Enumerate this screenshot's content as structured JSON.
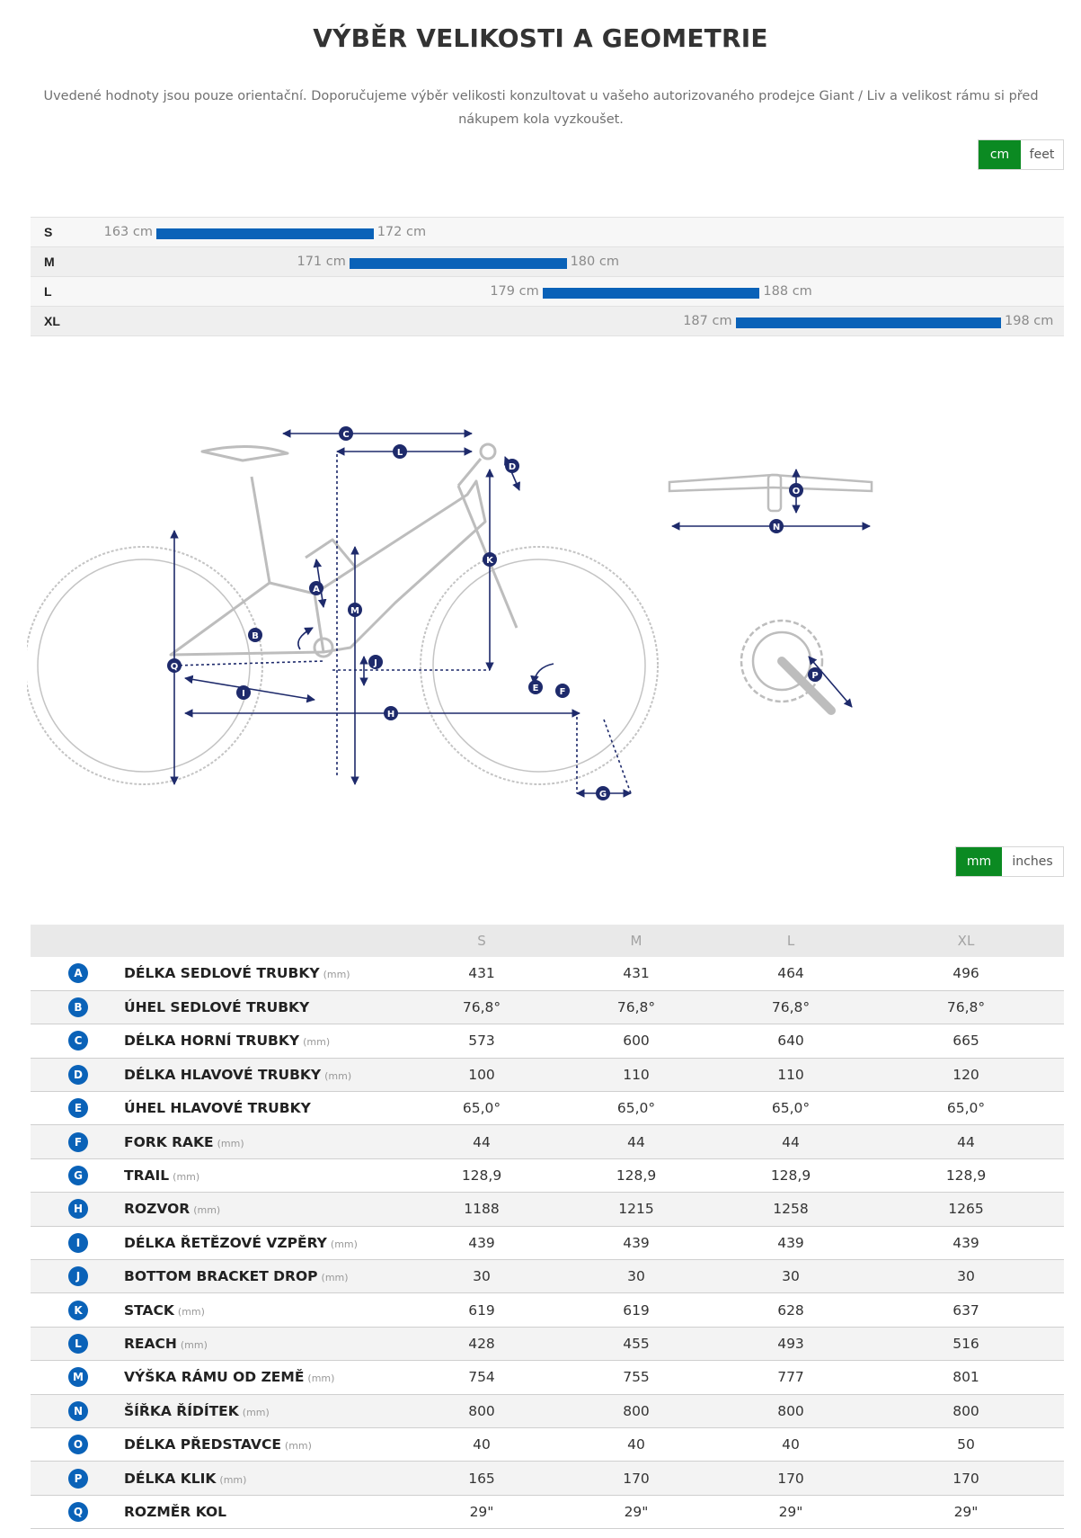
{
  "title": "VÝBĚR VELIKOSTI A GEOMETRIE",
  "intro": "Uvedené hodnoty jsou pouze orientační. Doporučujeme výběr velikosti konzultovat u vašeho autorizovaného prodejce Giant / Liv a velikost rámu si před nákupem kola vyzkoušet.",
  "unit_toggle": {
    "options": [
      "cm",
      "feet"
    ],
    "selected": "cm"
  },
  "size_chart": {
    "rows": [
      {
        "size": "S",
        "min_label": "163 cm",
        "max_label": "172 cm",
        "min": 163,
        "max": 172
      },
      {
        "size": "M",
        "min_label": "171 cm",
        "max_label": "180 cm",
        "min": 171,
        "max": 180
      },
      {
        "size": "L",
        "min_label": "179 cm",
        "max_label": "188 cm",
        "min": 179,
        "max": 188
      },
      {
        "size": "XL",
        "min_label": "187 cm",
        "max_label": "198 cm",
        "min": 187,
        "max": 198
      }
    ]
  },
  "diagram": {
    "labels": [
      "A",
      "B",
      "C",
      "D",
      "E",
      "F",
      "G",
      "H",
      "I",
      "J",
      "K",
      "L",
      "M",
      "N",
      "O",
      "P",
      "Q"
    ],
    "label_color": "#1e2a6b",
    "line_color": "#1e2a6b"
  },
  "dim_toggle": {
    "options": [
      "mm",
      "inches"
    ],
    "selected": "mm"
  },
  "geometry": {
    "columns": [
      "S",
      "M",
      "L",
      "XL"
    ],
    "rows": [
      {
        "key": "A",
        "name": "DÉLKA SEDLOVÉ TRUBKY",
        "unit": "(mm)",
        "values": [
          "431",
          "431",
          "464",
          "496"
        ]
      },
      {
        "key": "B",
        "name": "ÚHEL SEDLOVÉ TRUBKY",
        "unit": "",
        "values": [
          "76,8°",
          "76,8°",
          "76,8°",
          "76,8°"
        ]
      },
      {
        "key": "C",
        "name": "DÉLKA HORNÍ TRUBKY",
        "unit": "(mm)",
        "values": [
          "573",
          "600",
          "640",
          "665"
        ]
      },
      {
        "key": "D",
        "name": "DÉLKA HLAVOVÉ TRUBKY",
        "unit": "(mm)",
        "values": [
          "100",
          "110",
          "110",
          "120"
        ]
      },
      {
        "key": "E",
        "name": "ÚHEL HLAVOVÉ TRUBKY",
        "unit": "",
        "values": [
          "65,0°",
          "65,0°",
          "65,0°",
          "65,0°"
        ]
      },
      {
        "key": "F",
        "name": "FORK RAKE",
        "unit": "(mm)",
        "values": [
          "44",
          "44",
          "44",
          "44"
        ]
      },
      {
        "key": "G",
        "name": "TRAIL",
        "unit": "(mm)",
        "values": [
          "128,9",
          "128,9",
          "128,9",
          "128,9"
        ]
      },
      {
        "key": "H",
        "name": "ROZVOR",
        "unit": "(mm)",
        "values": [
          "1188",
          "1215",
          "1258",
          "1265"
        ]
      },
      {
        "key": "I",
        "name": "DÉLKA ŘETĚZOVÉ VZPĚRY",
        "unit": "(mm)",
        "values": [
          "439",
          "439",
          "439",
          "439"
        ]
      },
      {
        "key": "J",
        "name": "BOTTOM BRACKET DROP",
        "unit": "(mm)",
        "values": [
          "30",
          "30",
          "30",
          "30"
        ]
      },
      {
        "key": "K",
        "name": "STACK",
        "unit": "(mm)",
        "values": [
          "619",
          "619",
          "628",
          "637"
        ]
      },
      {
        "key": "L",
        "name": "REACH",
        "unit": "(mm)",
        "values": [
          "428",
          "455",
          "493",
          "516"
        ]
      },
      {
        "key": "M",
        "name": "VÝŠKA RÁMU OD ZEMĚ",
        "unit": "(mm)",
        "values": [
          "754",
          "755",
          "777",
          "801"
        ]
      },
      {
        "key": "N",
        "name": "ŠÍŘKA ŘÍDÍTEK",
        "unit": "(mm)",
        "values": [
          "800",
          "800",
          "800",
          "800"
        ]
      },
      {
        "key": "O",
        "name": "DÉLKA PŘEDSTAVCE",
        "unit": "(mm)",
        "values": [
          "40",
          "40",
          "40",
          "50"
        ]
      },
      {
        "key": "P",
        "name": "DÉLKA KLIK",
        "unit": "(mm)",
        "values": [
          "165",
          "170",
          "170",
          "170"
        ]
      },
      {
        "key": "Q",
        "name": "ROZMĚR KOL",
        "unit": "",
        "values": [
          "29\"",
          "29\"",
          "29\"",
          "29\""
        ]
      }
    ]
  }
}
